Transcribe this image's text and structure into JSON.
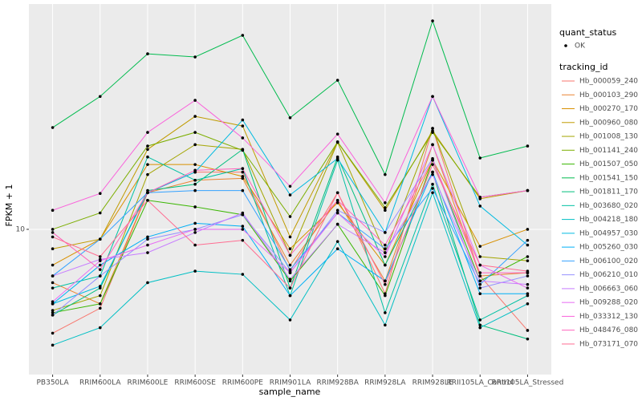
{
  "chart_data": {
    "type": "line",
    "log_y": true,
    "grid": true,
    "x_label": "sample_name",
    "y_label": "FPKM + 1",
    "categories": [
      "PB350LA",
      "RRIM600LA",
      "RRIM600LE",
      "RRIM600SE",
      "RRIM600PE",
      "RRIM901LA",
      "RRIM928BA",
      "RRIM928LA",
      "RRIM928LE",
      "RRII105LA_Control",
      "RRII105LA_Stressed"
    ],
    "ylim": [
      2.49,
      86.5
    ],
    "yticks": [
      10
    ],
    "point_color": "#000000",
    "quant_status_title": "quant_status",
    "quant_status_levels": [
      "OK"
    ],
    "legend_title": "tracking_id",
    "series": [
      {
        "name": "Hb_000059_240",
        "color": "#F8766D",
        "values": [
          3.7,
          4.7,
          14.2,
          17.3,
          17.3,
          6.7,
          14.2,
          5.4,
          26.3,
          6.4,
          3.8
        ]
      },
      {
        "name": "Hb_000103_290",
        "color": "#EA8331",
        "values": [
          6.0,
          4.9,
          14.2,
          16.0,
          16.3,
          7.1,
          13.2,
          6.1,
          22.5,
          6.4,
          6.6
        ]
      },
      {
        "name": "Hb_000270_170",
        "color": "#D89000",
        "values": [
          7.1,
          9.1,
          18.6,
          18.6,
          16.6,
          8.3,
          12.9,
          7.1,
          19.4,
          8.5,
          10
        ]
      },
      {
        "name": "Hb_000960_080",
        "color": "#C09B00",
        "values": [
          8.3,
          9.1,
          21.5,
          29.5,
          26.9,
          9.3,
          23.1,
          12.0,
          25.7,
          13.4,
          14.5
        ]
      },
      {
        "name": "Hb_001008_130",
        "color": "#A3A500",
        "values": [
          4.6,
          5.3,
          16.9,
          22.5,
          21.5,
          7.8,
          23,
          8.0,
          26.3,
          7.7,
          7.4
        ]
      },
      {
        "name": "Hb_001141_240",
        "color": "#7CAE00",
        "values": [
          10,
          11.7,
          22.2,
          25.3,
          21.3,
          11.3,
          23.1,
          12.3,
          25.3,
          13.6,
          14.5
        ]
      },
      {
        "name": "Hb_001507_050",
        "color": "#39B600",
        "values": [
          4.5,
          4.9,
          13.2,
          12.4,
          11.5,
          6.1,
          10.5,
          5.3,
          19.4,
          6.1,
          7.7
        ]
      },
      {
        "name": "Hb_001541_150",
        "color": "#00BB4E",
        "values": [
          26.5,
          35.7,
          53.7,
          52.1,
          64.1,
          29.1,
          41.7,
          16.9,
          73.6,
          19.8,
          22.2
        ]
      },
      {
        "name": "Hb_001811_170",
        "color": "#00BF7D",
        "values": [
          4.4,
          5.7,
          14.5,
          15.4,
          21.5,
          5.7,
          20,
          7.1,
          17.3,
          4,
          3.5
        ]
      },
      {
        "name": "Hb_003680_020",
        "color": "#00C1A3",
        "values": [
          5.7,
          6.4,
          20,
          16,
          17.9,
          5.3,
          19.4,
          4.5,
          15.4,
          4.2,
          5.3
        ]
      },
      {
        "name": "Hb_004218_180",
        "color": "#00BFC4",
        "values": [
          3.3,
          3.9,
          6,
          6.7,
          6.5,
          4.2,
          8.9,
          4,
          14.2,
          3.9,
          4.9
        ]
      },
      {
        "name": "Hb_004957_030",
        "color": "#00BAE0",
        "values": [
          4.9,
          5.8,
          14.2,
          17.3,
          28.5,
          13.9,
          19.7,
          9.7,
          35.7,
          12.5,
          8.6
        ]
      },
      {
        "name": "Hb_005260_030",
        "color": "#00B0F6",
        "values": [
          4.9,
          7.1,
          9.3,
          10.6,
          10.3,
          5.3,
          8.3,
          6.1,
          17.3,
          5.4,
          5.4
        ]
      },
      {
        "name": "Hb_006100_020",
        "color": "#35A2FF",
        "values": [
          6.4,
          9.1,
          14.2,
          14.5,
          14.5,
          6.8,
          11.7,
          8.3,
          14.8,
          5.9,
          9
        ]
      },
      {
        "name": "Hb_006210_010",
        "color": "#9590FF",
        "values": [
          4.4,
          6.4,
          9.1,
          10,
          11.5,
          6.6,
          12,
          9.7,
          19.7,
          5.7,
          6.4
        ]
      },
      {
        "name": "Hb_006663_060",
        "color": "#C77CFF",
        "values": [
          6.4,
          7.5,
          8,
          9.7,
          11.7,
          6.2,
          10.5,
          8,
          16.9,
          6.1,
          5.9
        ]
      },
      {
        "name": "Hb_009288_020",
        "color": "#E76BF3",
        "values": [
          5,
          7.4,
          8.6,
          10,
          10,
          6.6,
          11.7,
          7.7,
          22.5,
          7.1,
          5.7
        ]
      },
      {
        "name": "Hb_033312_130",
        "color": "#FA62DB",
        "values": [
          12,
          14.1,
          25.3,
          34.4,
          24,
          15.1,
          24.9,
          12.9,
          35.7,
          13.6,
          14.5
        ]
      },
      {
        "name": "Hb_048476_080",
        "color": "#FF62BC",
        "values": [
          9.7,
          6.8,
          14.2,
          17.6,
          17.9,
          7.8,
          13.2,
          8.6,
          19.4,
          6.6,
          6.6
        ]
      },
      {
        "name": "Hb_073171_070",
        "color": "#FF6C91",
        "values": [
          9.3,
          7.7,
          13.2,
          8.6,
          9,
          5.7,
          14.2,
          5.9,
          18.6,
          7.1,
          6.7
        ]
      }
    ]
  }
}
